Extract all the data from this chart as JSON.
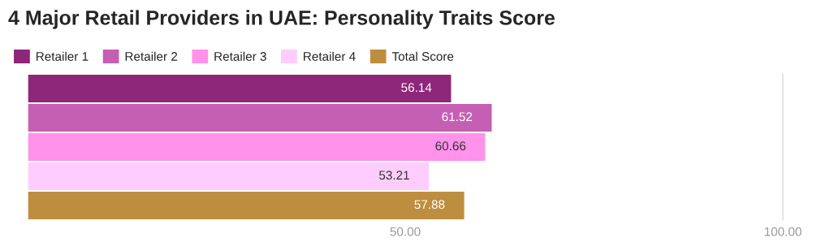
{
  "chart_data": {
    "type": "bar",
    "orientation": "horizontal",
    "title": "4 Major Retail Providers in UAE: Personality Traits Score",
    "categories": [
      null
    ],
    "series": [
      {
        "name": "Retailer 1",
        "color": "#8e2679",
        "values": [
          56.14
        ],
        "value_labels": [
          "56.14"
        ]
      },
      {
        "name": "Retailer 2",
        "color": "#c55fb4",
        "values": [
          61.52
        ],
        "value_labels": [
          "61.52"
        ]
      },
      {
        "name": "Retailer 3",
        "color": "#ff92ea",
        "values": [
          60.66
        ],
        "value_labels": [
          "60.66"
        ]
      },
      {
        "name": "Retailer 4",
        "color": "#ffcdfd",
        "values": [
          53.21
        ],
        "value_labels": [
          "53.21"
        ]
      },
      {
        "name": "Total Score",
        "color": "#be8e40",
        "values": [
          57.88
        ],
        "value_labels": [
          "57.88"
        ]
      }
    ],
    "xlim": [
      0,
      100
    ],
    "xticks": [
      {
        "value": 50,
        "label": "50.00"
      },
      {
        "value": 100,
        "label": "100.00"
      }
    ],
    "legend": "top left"
  }
}
